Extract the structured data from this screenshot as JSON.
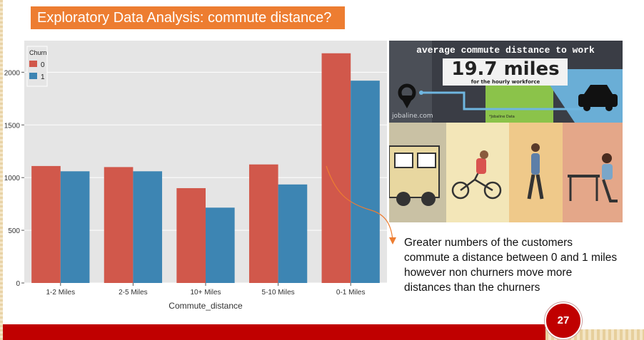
{
  "slide": {
    "title": "Exploratory Data Analysis: commute distance?",
    "annotation": "Greater numbers of the customers commute a distance between 0 and 1 miles however non churners move  more distances than the churners",
    "page_number": "27",
    "colors": {
      "title_bg": "#ed7d31",
      "footer_bar": "#c00000",
      "badge": "#c00000",
      "series_0": "#d1584b",
      "series_1": "#3d85b3",
      "plot_bg": "#e5e5e5",
      "arrow": "#ed7d31"
    }
  },
  "infographic": {
    "headline": "average commute distance to work",
    "value": "19.7 miles",
    "subline": "for the hourly workforce",
    "source_left": "jobaline.com",
    "source_right": "*Jobaline Data",
    "icons": [
      "map-pin-icon",
      "car-icon",
      "truck-icon",
      "cyclist-icon",
      "walker-icon",
      "desk-worker-icon"
    ]
  },
  "chart_data": {
    "type": "bar",
    "categories": [
      "1-2 Miles",
      "2-5 Miles",
      "10+ Miles",
      "5-10 Miles",
      "0-1 Miles"
    ],
    "series": [
      {
        "name": "0",
        "values": [
          1110,
          1100,
          900,
          1125,
          2180
        ]
      },
      {
        "name": "1",
        "values": [
          1060,
          1060,
          715,
          935,
          1920
        ]
      }
    ],
    "title": "",
    "xlabel": "Commute_distance",
    "ylabel": "",
    "ylim": [
      0,
      2300
    ],
    "yticks": [
      0,
      500,
      1000,
      1500,
      2000
    ],
    "legend": {
      "title": "Churn",
      "position": "top-left"
    },
    "grid": true
  }
}
